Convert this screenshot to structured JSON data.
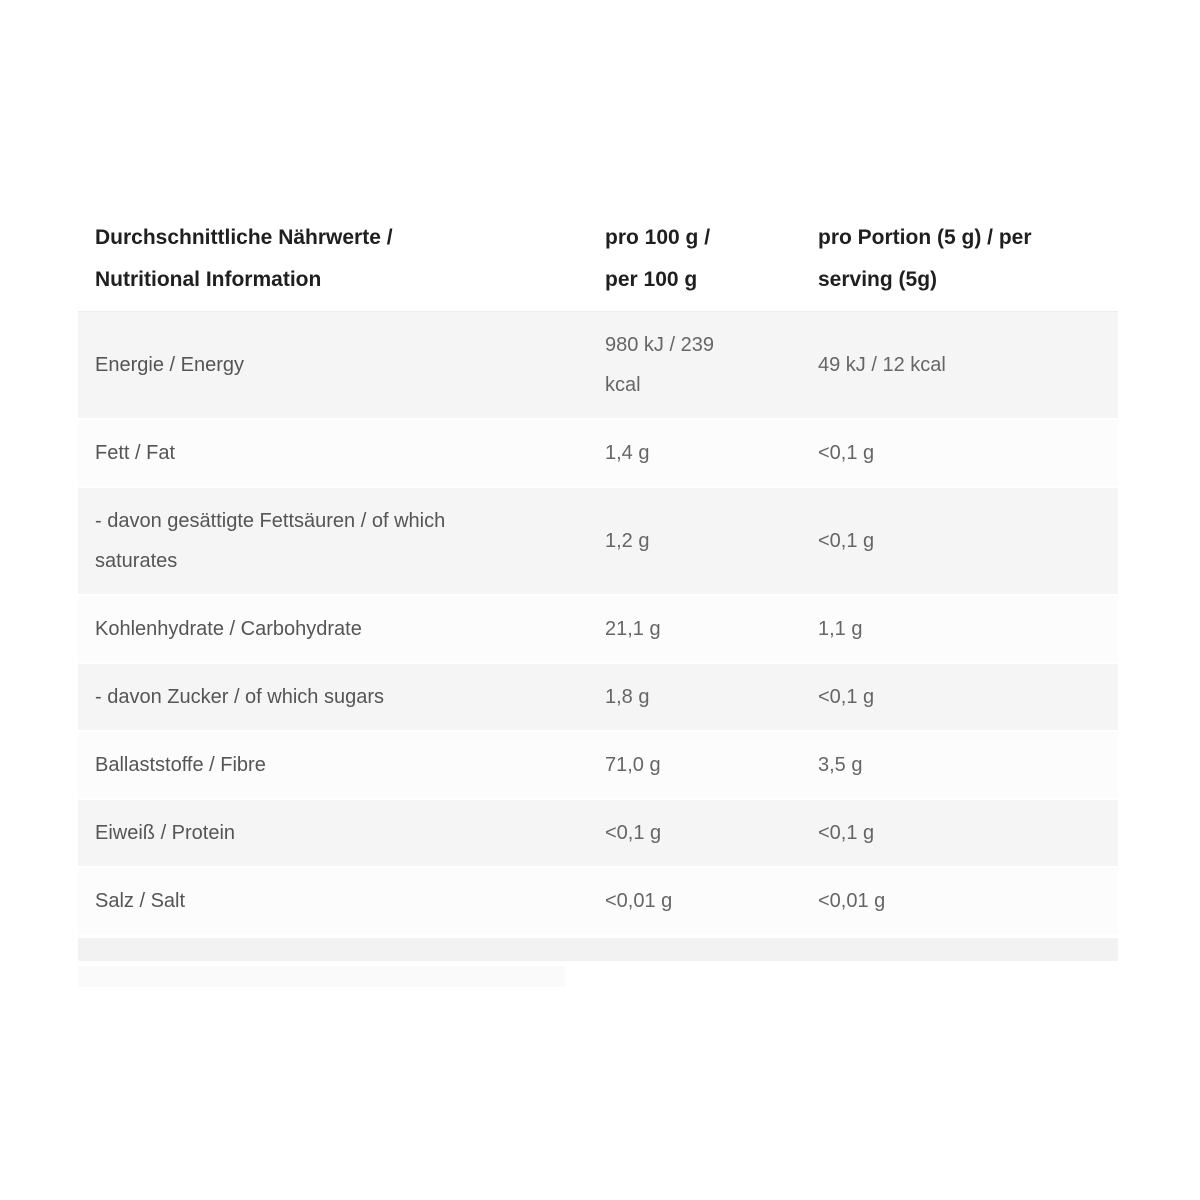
{
  "table": {
    "header": {
      "nutrient_col": "Durchschnittliche Nährwerte / Nutritional Information",
      "per_100g_col": "pro 100 g / per 100 g",
      "per_serving_col": "pro Portion (5 g) / per serving (5g)"
    },
    "rows": [
      {
        "label": "Energie / Energy",
        "per_100g": "980 kJ / 239 kcal",
        "per_serving": "49 kJ / 12 kcal"
      },
      {
        "label": "Fett / Fat",
        "per_100g": "1,4 g",
        "per_serving": "<0,1 g"
      },
      {
        "label": "- davon gesättigte Fettsäuren / of which saturates",
        "per_100g": "1,2 g",
        "per_serving": "<0,1 g"
      },
      {
        "label": "Kohlenhydrate / Carbohydrate",
        "per_100g": "21,1 g",
        "per_serving": "1,1 g"
      },
      {
        "label": "- davon Zucker / of which sugars",
        "per_100g": "1,8 g",
        "per_serving": "<0,1 g"
      },
      {
        "label": "Ballaststoffe / Fibre",
        "per_100g": "71,0 g",
        "per_serving": "3,5 g"
      },
      {
        "label": "Eiweiß / Protein",
        "per_100g": "<0,1 g",
        "per_serving": "<0,1 g"
      },
      {
        "label": "Salz / Salt",
        "per_100g": "<0,01 g",
        "per_serving": "<0,01 g"
      }
    ],
    "colors": {
      "header_text": "#1f1f1f",
      "label_text": "#555555",
      "value_text": "#666666",
      "row_bg": "#fcfcfc",
      "row_alt_bg": "#f5f5f5",
      "footer_band": "#f2f2f2",
      "header_divider": "#ececec",
      "page_bg": "#ffffff"
    }
  }
}
